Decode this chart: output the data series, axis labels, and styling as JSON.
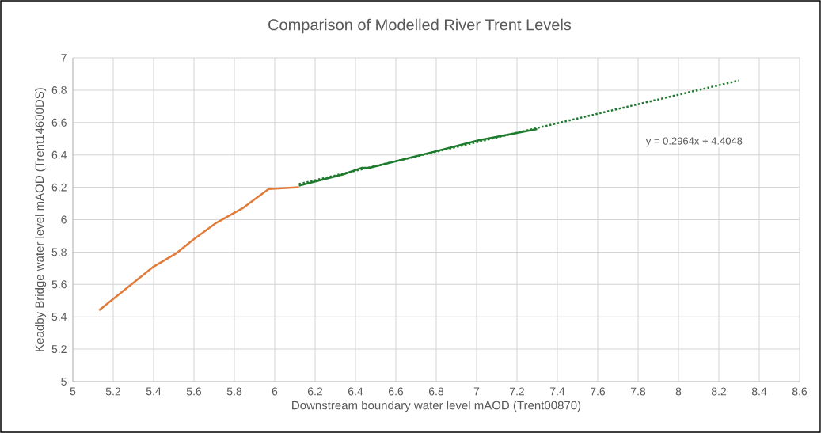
{
  "chart_data": {
    "type": "line",
    "title": "Comparison of Modelled River Trent Levels",
    "xlabel": "Downstream boundary water level mAOD (Trent00870)",
    "ylabel": "Keadby Bridge water level mAOD (Trent14600DS)",
    "xlim": [
      5,
      8.6
    ],
    "xticks": [
      5,
      5.2,
      5.4,
      5.6,
      5.8,
      6,
      6.2,
      6.4,
      6.6,
      6.8,
      7,
      7.2,
      7.4,
      7.6,
      7.8,
      8,
      8.2,
      8.4,
      8.6
    ],
    "ylim": [
      5,
      7
    ],
    "yticks": [
      5,
      5.2,
      5.4,
      5.6,
      5.8,
      6,
      6.2,
      6.4,
      6.6,
      6.8,
      7
    ],
    "grid": true,
    "marker": "none",
    "series": [
      {
        "color": "#e07b39",
        "line_style": "solid",
        "x": [
          5.13,
          5.4,
          5.51,
          5.6,
          5.71,
          5.84,
          5.97,
          6.12
        ],
        "values": [
          5.44,
          5.71,
          5.79,
          5.88,
          5.98,
          6.07,
          6.19,
          6.2
        ]
      },
      {
        "color": "#1e7b2e",
        "line_style": "solid",
        "x": [
          6.12,
          6.34,
          6.43,
          6.47,
          6.79,
          7.01,
          7.3
        ],
        "values": [
          6.21,
          6.28,
          6.32,
          6.32,
          6.42,
          6.49,
          6.56
        ]
      },
      {
        "color": "#1e7b2e",
        "line_style": "dotted",
        "x": [
          6.12,
          8.3
        ],
        "values": [
          6.22,
          6.86
        ]
      }
    ],
    "annotations": [
      "y = 0.2964x + 4.4048"
    ]
  }
}
